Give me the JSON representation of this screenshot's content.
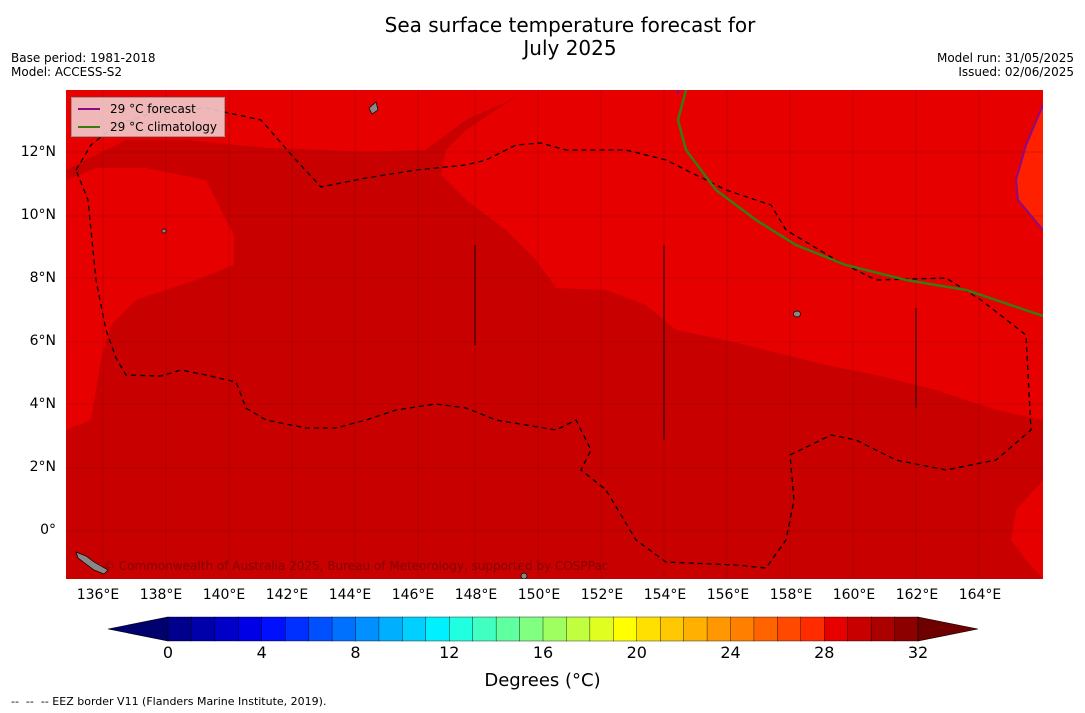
{
  "title_line1": "Sea surface temperature forecast for",
  "title_line2": "July 2025",
  "base_period": "Base period: 1981-2018",
  "model": "Model: ACCESS-S2",
  "model_run": "Model run: 31/05/2025",
  "issued": "Issued: 02/06/2025",
  "legend": {
    "forecast_label": "29 °C  forecast",
    "forecast_color": "#8b0a8b",
    "climatology_label": "29 °C  climatology",
    "climatology_color": "#3a7a10"
  },
  "copyright": "© Commonwealth of Australia 2025, Bureau of Meteorology, supported by COSPPac",
  "lat_ticks": [
    "12°N",
    "10°N",
    "8°N",
    "6°N",
    "4°N",
    "2°N",
    "0°"
  ],
  "lon_ticks": [
    "136°E",
    "138°E",
    "140°E",
    "142°E",
    "144°E",
    "146°E",
    "148°E",
    "150°E",
    "152°E",
    "154°E",
    "156°E",
    "158°E",
    "160°E",
    "162°E",
    "164°E"
  ],
  "colorbar": {
    "ticks": [
      "0",
      "4",
      "8",
      "12",
      "16",
      "20",
      "24",
      "28",
      "32"
    ],
    "label": "Degrees (°C)",
    "min": 0,
    "max": 32,
    "step": 1,
    "colors": [
      "#00008c",
      "#0000aa",
      "#0000c8",
      "#0000e6",
      "#0010ff",
      "#0030ff",
      "#0050ff",
      "#0070ff",
      "#0090ff",
      "#00b0ff",
      "#00d0ff",
      "#00f0ff",
      "#20ffe0",
      "#40ffc0",
      "#60ffa0",
      "#80ff80",
      "#a0ff60",
      "#c0ff40",
      "#e0ff20",
      "#ffff00",
      "#ffe000",
      "#ffc800",
      "#ffb000",
      "#ff9800",
      "#ff8000",
      "#ff6400",
      "#ff4800",
      "#ff2c00",
      "#e60000",
      "#c80000",
      "#aa0000",
      "#8c0000"
    ]
  },
  "footnote": "--  --  -- EEZ border V11 (Flanders Marine Institute, 2019)."
}
